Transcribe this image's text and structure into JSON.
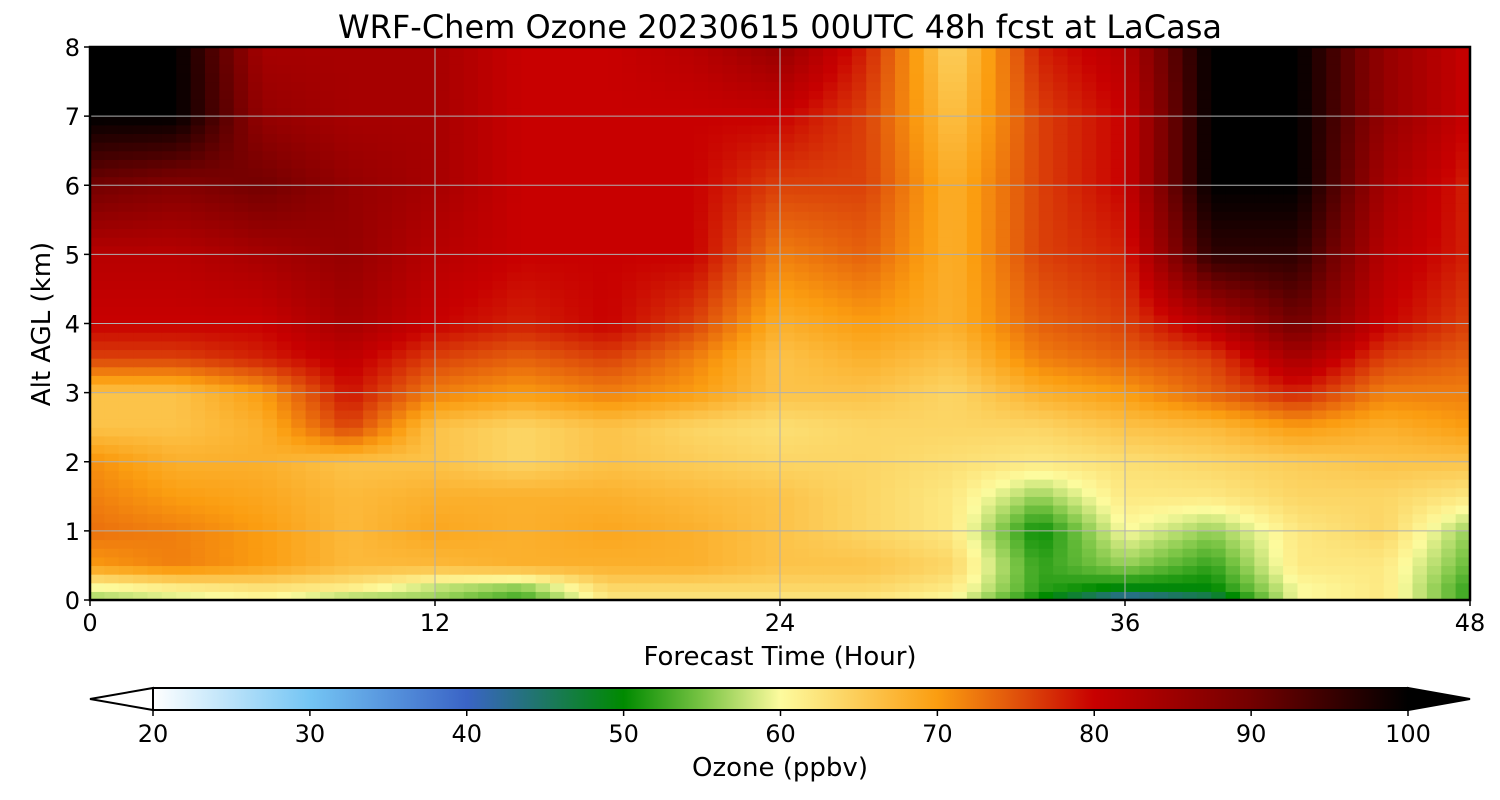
{
  "chart_data": {
    "type": "heatmap",
    "title": "WRF-Chem Ozone  20230615 00UTC 48h fcst at LaCasa",
    "xlabel": "Forecast Time (Hour)",
    "ylabel": "Alt AGL (km)",
    "xlim": [
      0,
      48
    ],
    "ylim": [
      0,
      8
    ],
    "x_ticks": [
      0,
      12,
      24,
      36,
      48
    ],
    "y_ticks": [
      0,
      1,
      2,
      3,
      4,
      5,
      6,
      7,
      8
    ],
    "grid": true,
    "colorbar": {
      "label": "Ozone  (ppbv)",
      "range": [
        20,
        100
      ],
      "ticks": [
        20,
        30,
        40,
        50,
        60,
        70,
        80,
        90,
        100
      ],
      "extend": "both",
      "stops": [
        {
          "value": 20,
          "color": "#ffffff"
        },
        {
          "value": 30,
          "color": "#74c5f4"
        },
        {
          "value": 40,
          "color": "#3a64c6"
        },
        {
          "value": 50,
          "color": "#008a00"
        },
        {
          "value": 55,
          "color": "#79c444"
        },
        {
          "value": 60,
          "color": "#fdfb9e"
        },
        {
          "value": 70,
          "color": "#fb9d10"
        },
        {
          "value": 75,
          "color": "#e0520b"
        },
        {
          "value": 80,
          "color": "#c80000"
        },
        {
          "value": 90,
          "color": "#730000"
        },
        {
          "value": 100,
          "color": "#000000"
        }
      ]
    },
    "field": {
      "x": [
        0,
        3,
        6,
        9,
        12,
        15,
        18,
        21,
        24,
        27,
        30,
        33,
        36,
        39,
        42,
        45,
        48
      ],
      "y": [
        0,
        0.2,
        0.5,
        1,
        1.5,
        2,
        2.5,
        3,
        3.5,
        4,
        5,
        6,
        7,
        8
      ],
      "values_ppbv": [
        [
          56,
          58,
          60,
          56,
          56,
          52,
          62,
          62,
          62,
          62,
          60,
          50,
          40,
          45,
          60,
          62,
          52
        ],
        [
          60,
          62,
          63,
          62,
          58,
          56,
          64,
          64,
          64,
          64,
          62,
          52,
          50,
          50,
          60,
          62,
          52
        ],
        [
          70,
          72,
          70,
          67,
          67,
          68,
          68,
          68,
          66,
          66,
          64,
          52,
          56,
          52,
          62,
          62,
          54
        ],
        [
          73,
          72,
          70,
          67,
          69,
          68,
          69,
          68,
          66,
          64,
          62,
          50,
          60,
          56,
          62,
          64,
          56
        ],
        [
          72,
          70,
          69,
          67,
          68,
          68,
          68,
          67,
          66,
          64,
          62,
          56,
          62,
          62,
          64,
          64,
          62
        ],
        [
          71,
          68,
          68,
          66,
          66,
          64,
          66,
          65,
          64,
          64,
          63,
          62,
          63,
          64,
          65,
          66,
          66
        ],
        [
          66,
          66,
          68,
          76,
          66,
          64,
          66,
          64,
          63,
          64,
          64,
          64,
          66,
          67,
          70,
          68,
          70
        ],
        [
          66,
          66,
          70,
          79,
          72,
          70,
          72,
          70,
          66,
          66,
          64,
          68,
          70,
          74,
          78,
          72,
          72
        ],
        [
          76,
          76,
          78,
          81,
          76,
          74,
          76,
          72,
          66,
          68,
          66,
          72,
          74,
          76,
          84,
          76,
          74
        ],
        [
          80,
          80,
          80,
          84,
          80,
          78,
          80,
          76,
          68,
          70,
          68,
          74,
          76,
          82,
          90,
          80,
          76
        ],
        [
          82,
          82,
          84,
          86,
          82,
          80,
          80,
          80,
          72,
          74,
          68,
          76,
          78,
          96,
          96,
          82,
          78
        ],
        [
          90,
          88,
          90,
          86,
          84,
          80,
          80,
          80,
          76,
          76,
          68,
          76,
          80,
          100,
          100,
          84,
          78
        ],
        [
          100,
          100,
          86,
          84,
          84,
          80,
          80,
          80,
          80,
          76,
          66,
          76,
          80,
          100,
          100,
          86,
          80
        ],
        [
          100,
          100,
          84,
          84,
          84,
          80,
          80,
          82,
          86,
          78,
          64,
          78,
          82,
          100,
          100,
          86,
          80
        ]
      ]
    }
  }
}
